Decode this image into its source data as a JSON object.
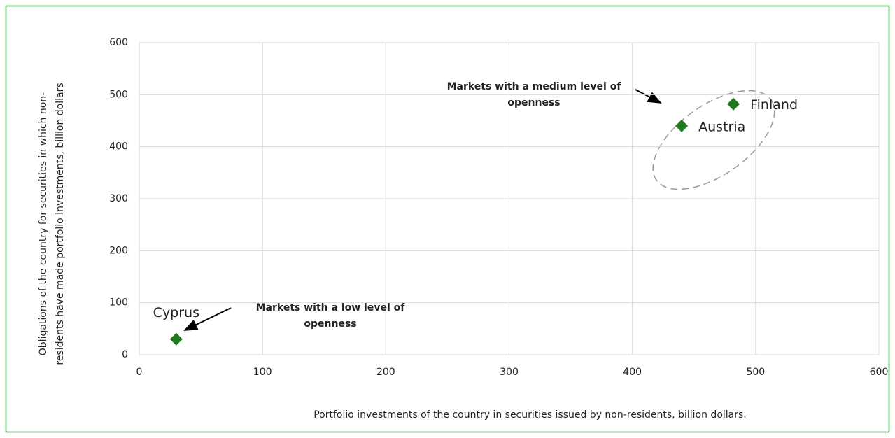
{
  "chart_data": {
    "type": "scatter",
    "x_label": "Portfolio investments of the country in securities issued by non-residents, billion dollars.",
    "y_label": [
      "Obligations of the country for securities in which non-",
      "residents have made portfolio investments, billion dollars"
    ],
    "x": [
      30,
      440,
      482
    ],
    "values": [
      30,
      440,
      482
    ],
    "labels": [
      "Cyprus",
      "Austria",
      "Finland"
    ],
    "color": "#1e7a1e",
    "xlim": [
      0,
      600
    ],
    "xticks": [
      0,
      100,
      200,
      300,
      400,
      500,
      600
    ],
    "ylim": [
      0,
      600
    ],
    "yticks": [
      0,
      100,
      200,
      300,
      400,
      500,
      600
    ],
    "grid": true,
    "annotations": [
      {
        "lines": [
          "Markets with a medium level of",
          "openness"
        ]
      },
      {
        "lines": [
          "Markets with a low level of",
          "openness"
        ]
      }
    ]
  }
}
